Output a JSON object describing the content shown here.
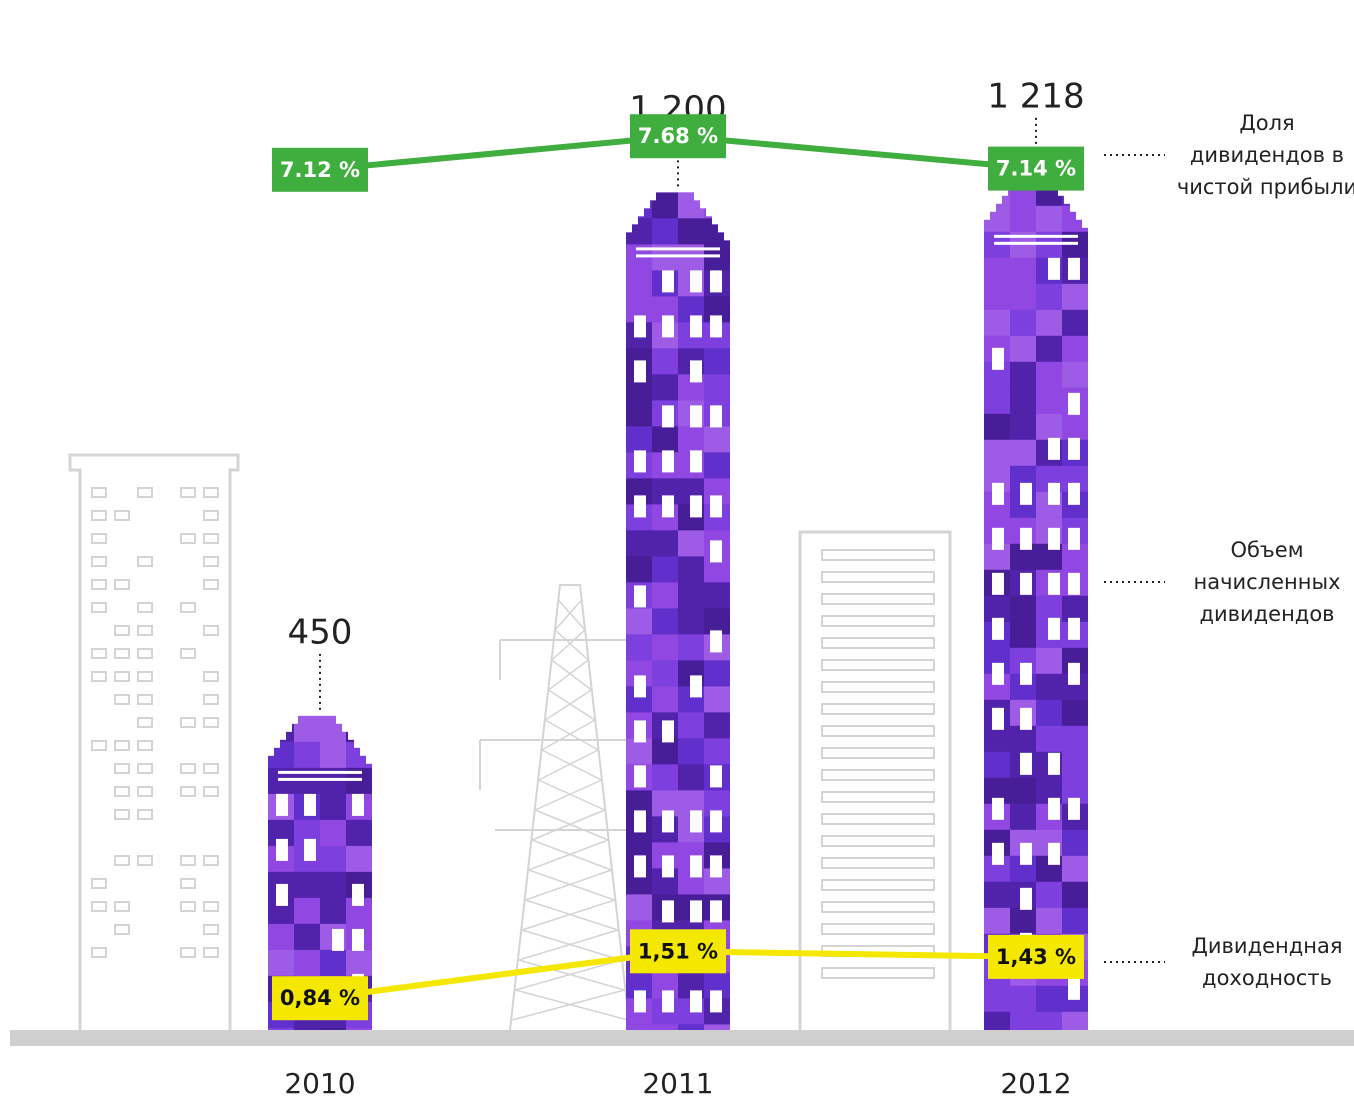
{
  "chart_data": {
    "type": "bar",
    "categories": [
      "2010",
      "2011",
      "2012"
    ],
    "series": [
      {
        "name": "Объем начисленных дивидендов",
        "type": "bar",
        "color": "#6a2fd0",
        "values": [
          450,
          1200,
          1218
        ],
        "value_labels": [
          "450",
          "1 200",
          "1 218"
        ]
      },
      {
        "name": "Доля дивидендов в чистой прибыли",
        "type": "line",
        "color": "#3fae3f",
        "values": [
          7.12,
          7.68,
          7.14
        ],
        "value_labels": [
          "7.12 %",
          "7.68 %",
          "7.14 %"
        ]
      },
      {
        "name": "Дивидендная доходность",
        "type": "line",
        "color": "#f5e800",
        "values": [
          0.84,
          1.51,
          1.43
        ],
        "value_labels": [
          "0,84 %",
          "1,51 %",
          "1,43 %"
        ]
      }
    ]
  }
}
